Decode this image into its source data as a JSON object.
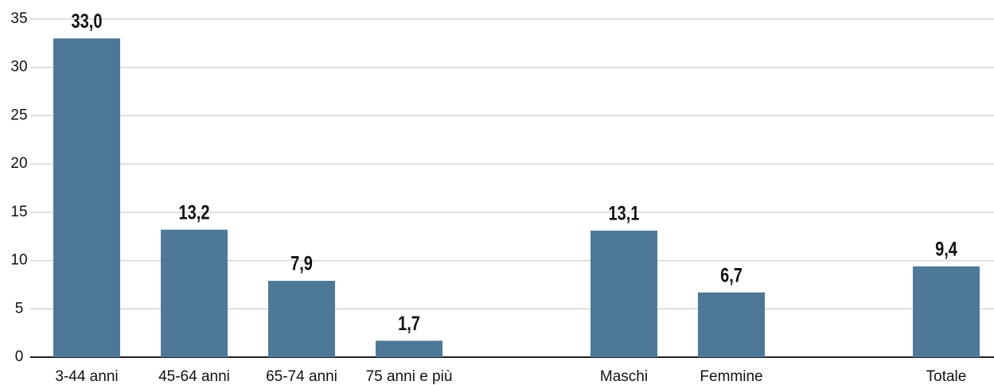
{
  "chart_data": {
    "type": "bar",
    "categories": [
      "3-44 anni",
      "45-64 anni",
      "65-74 anni",
      "75 anni e più",
      null,
      "Maschi",
      "Femmine",
      null,
      "Totale"
    ],
    "values": [
      33.0,
      13.2,
      7.9,
      1.7,
      null,
      13.1,
      6.7,
      null,
      9.4
    ],
    "value_labels": [
      "33,0",
      "13,2",
      "7,9",
      "1,7",
      null,
      "13,1",
      "6,7",
      null,
      "9,4"
    ],
    "color": "#4e7898",
    "ylim": [
      0,
      35
    ],
    "yticks": [
      0,
      5,
      10,
      15,
      20,
      25,
      30,
      35
    ],
    "grid": true
  }
}
